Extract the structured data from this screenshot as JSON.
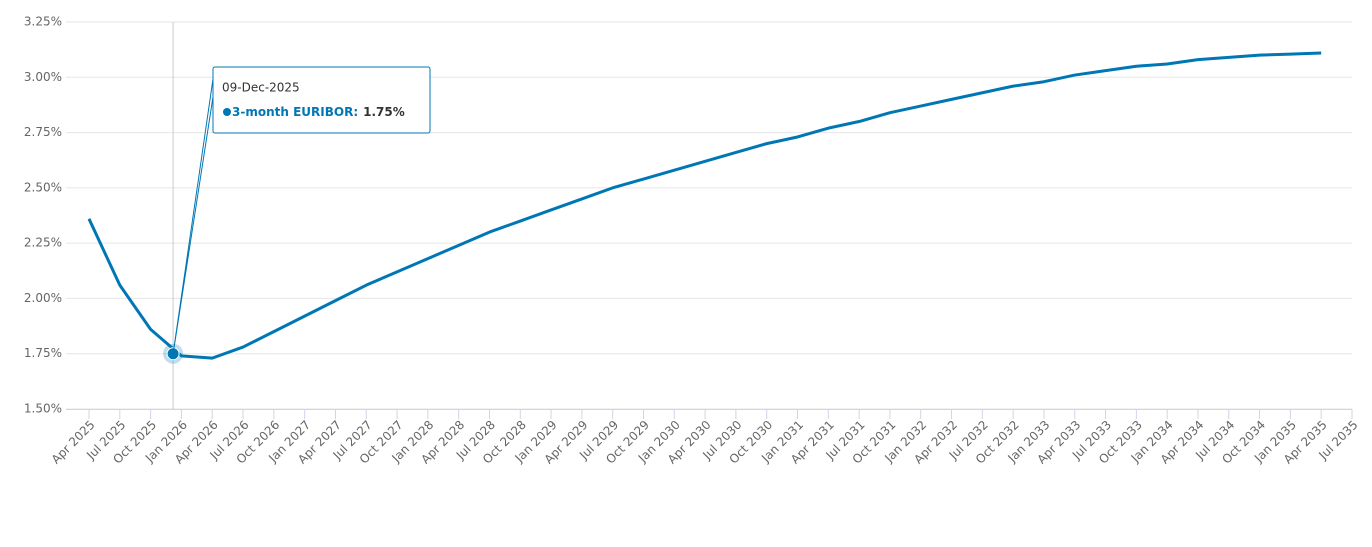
{
  "chart_data": {
    "type": "line",
    "categories": [
      "Apr 2025",
      "Jul 2025",
      "Oct 2025",
      "Jan 2026",
      "Apr 2026",
      "Jul 2026",
      "Oct 2026",
      "Jan 2027",
      "Apr 2027",
      "Jul 2027",
      "Oct 2027",
      "Jan 2028",
      "Apr 2028",
      "Jul 2028",
      "Oct 2028",
      "Jan 2029",
      "Apr 2029",
      "Jul 2029",
      "Oct 2029",
      "Jan 2030",
      "Apr 2030",
      "Jul 2030",
      "Oct 2030",
      "Jan 2031",
      "Apr 2031",
      "Jul 2031",
      "Oct 2031",
      "Jan 2032",
      "Apr 2032",
      "Jul 2032",
      "Oct 2032",
      "Jan 2033",
      "Apr 2033",
      "Jul 2033",
      "Oct 2033",
      "Jan 2034",
      "Apr 2034",
      "Jul 2034",
      "Oct 2034",
      "Jan 2035",
      "Apr 2035",
      "Jul 2035"
    ],
    "series": [
      {
        "color": "#0077b5",
        "values": [
          2.36,
          2.06,
          1.86,
          1.74,
          1.73,
          1.78,
          1.85,
          1.92,
          1.99,
          2.06,
          2.12,
          2.18,
          2.24,
          2.3,
          2.35,
          2.4,
          2.45,
          2.5,
          2.54,
          2.58,
          2.62,
          2.66,
          2.7,
          2.73,
          2.77,
          2.8,
          2.84,
          2.87,
          2.9,
          2.93,
          2.96,
          2.98,
          3.01,
          3.03,
          3.05,
          3.06,
          3.08,
          3.09,
          3.1,
          3.105,
          3.11,
          null
        ]
      }
    ],
    "ylim": [
      1.5,
      3.25
    ],
    "yticks": [
      {
        "value": 1.5,
        "label": "1.50%"
      },
      {
        "value": 1.75,
        "label": "1.75%"
      },
      {
        "value": 2.0,
        "label": "2.00%"
      },
      {
        "value": 2.25,
        "label": "2.25%"
      },
      {
        "value": 2.5,
        "label": "2.50%"
      },
      {
        "value": 2.75,
        "label": "2.75%"
      },
      {
        "value": 3.0,
        "label": "3.00%"
      },
      {
        "value": 3.25,
        "label": "3.25%"
      }
    ],
    "grid": true,
    "tooltip": {
      "date": "09-Dec-2025",
      "label": "3-month EURIBOR:",
      "value": 1.75,
      "value_label": "1.75%"
    }
  }
}
